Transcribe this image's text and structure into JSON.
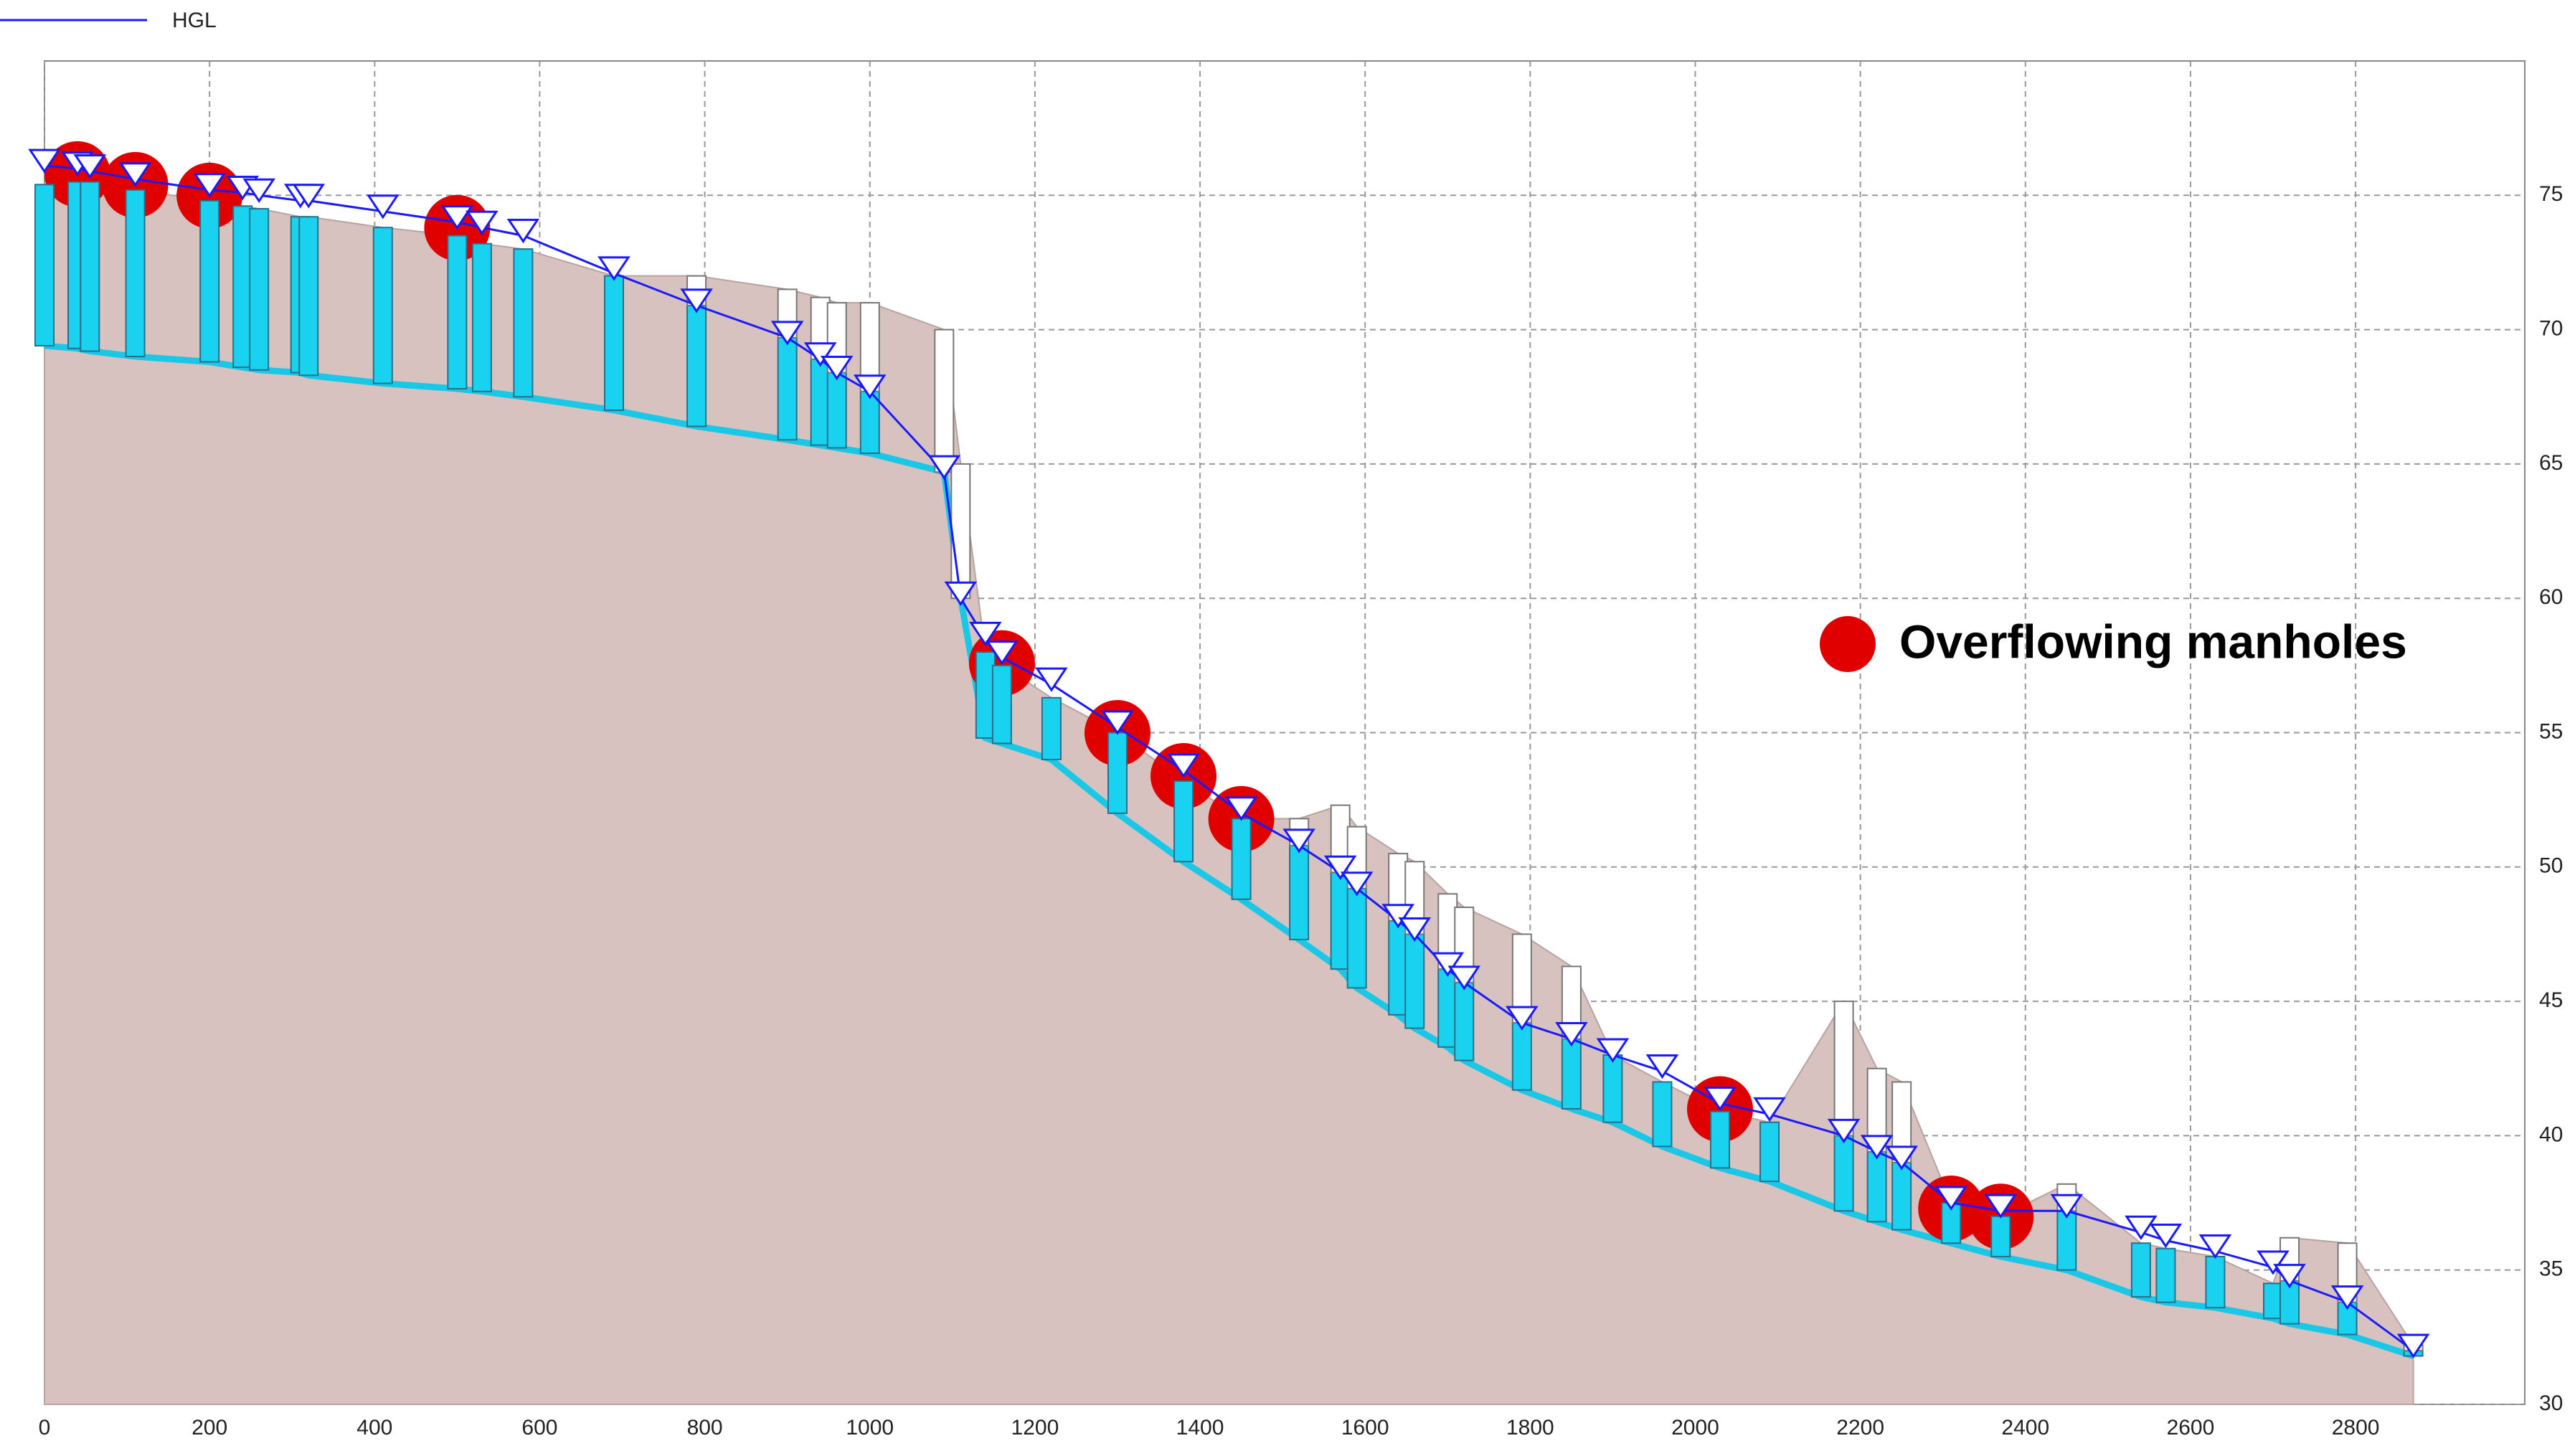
{
  "chart_data": {
    "type": "profile",
    "xlim": [
      0,
      3005
    ],
    "ylim": [
      30,
      80
    ],
    "xticks": [
      0,
      200,
      400,
      600,
      800,
      1000,
      1200,
      1400,
      1600,
      1800,
      2000,
      2200,
      2400,
      2600,
      2800
    ],
    "yticks": [
      30,
      35,
      40,
      45,
      50,
      55,
      60,
      65,
      70,
      75
    ],
    "grid": true,
    "x": [
      0,
      40,
      55,
      110,
      200,
      240,
      260,
      310,
      320,
      410,
      500,
      530,
      580,
      690,
      790,
      900,
      940,
      960,
      1000,
      1090,
      1110,
      1140,
      1160,
      1220,
      1300,
      1380,
      1450,
      1520,
      1570,
      1590,
      1640,
      1660,
      1700,
      1720,
      1790,
      1850,
      1900,
      1960,
      2030,
      2090,
      2180,
      2220,
      2250,
      2310,
      2370,
      2450,
      2540,
      2570,
      2630,
      2700,
      2720,
      2790,
      2870
    ],
    "invert": [
      69.4,
      69.3,
      69.2,
      69.0,
      68.8,
      68.6,
      68.5,
      68.4,
      68.3,
      68.0,
      67.8,
      67.7,
      67.5,
      67.0,
      66.4,
      65.9,
      65.7,
      65.6,
      65.4,
      64.7,
      60.0,
      54.8,
      54.6,
      54.0,
      52.0,
      50.2,
      48.8,
      47.3,
      46.2,
      45.5,
      44.5,
      44.0,
      43.3,
      42.8,
      41.7,
      41.0,
      40.5,
      39.6,
      38.8,
      38.3,
      37.2,
      36.8,
      36.5,
      36.0,
      35.5,
      35.0,
      34.0,
      33.8,
      33.6,
      33.2,
      33.0,
      32.6,
      31.8
    ],
    "rim": [
      75.4,
      75.5,
      75.5,
      75.2,
      74.8,
      74.6,
      74.5,
      74.2,
      74.2,
      73.8,
      73.5,
      73.2,
      73.0,
      72.0,
      72.0,
      71.5,
      71.2,
      71.0,
      71.0,
      70.0,
      65.0,
      58.0,
      57.5,
      56.3,
      55.0,
      53.2,
      51.8,
      51.8,
      52.3,
      51.5,
      50.5,
      50.2,
      49.0,
      48.5,
      47.5,
      46.3,
      43.0,
      42.0,
      40.9,
      40.5,
      45.0,
      42.5,
      42.0,
      37.5,
      37.0,
      38.2,
      36.0,
      35.8,
      35.5,
      34.5,
      36.2,
      36.0,
      32.2
    ],
    "series": [
      {
        "name": "HGL",
        "color": "#1a1aff",
        "values": [
          76.1,
          76.0,
          75.9,
          75.6,
          75.2,
          75.1,
          75.0,
          74.8,
          74.8,
          74.4,
          74.0,
          73.8,
          73.5,
          72.1,
          70.9,
          69.7,
          68.9,
          68.4,
          67.7,
          64.7,
          60.0,
          58.5,
          57.8,
          56.8,
          55.2,
          53.6,
          52.0,
          50.8,
          49.8,
          49.2,
          48.0,
          47.5,
          46.2,
          45.7,
          44.2,
          43.6,
          43.0,
          42.4,
          41.2,
          40.8,
          40.0,
          39.4,
          39.0,
          37.5,
          37.2,
          37.2,
          36.4,
          36.1,
          35.7,
          35.1,
          34.6,
          33.8,
          32.0
        ]
      }
    ],
    "overflowing": [
      false,
      true,
      false,
      true,
      true,
      false,
      false,
      false,
      false,
      false,
      true,
      false,
      false,
      false,
      false,
      false,
      false,
      false,
      false,
      false,
      false,
      false,
      true,
      false,
      true,
      true,
      true,
      false,
      false,
      false,
      false,
      false,
      false,
      false,
      false,
      false,
      false,
      false,
      true,
      false,
      false,
      false,
      false,
      true,
      true,
      false,
      false,
      false,
      false,
      false,
      false,
      false,
      false
    ],
    "annotation": {
      "text": "Overflowing manholes",
      "color": "#e00000"
    }
  }
}
